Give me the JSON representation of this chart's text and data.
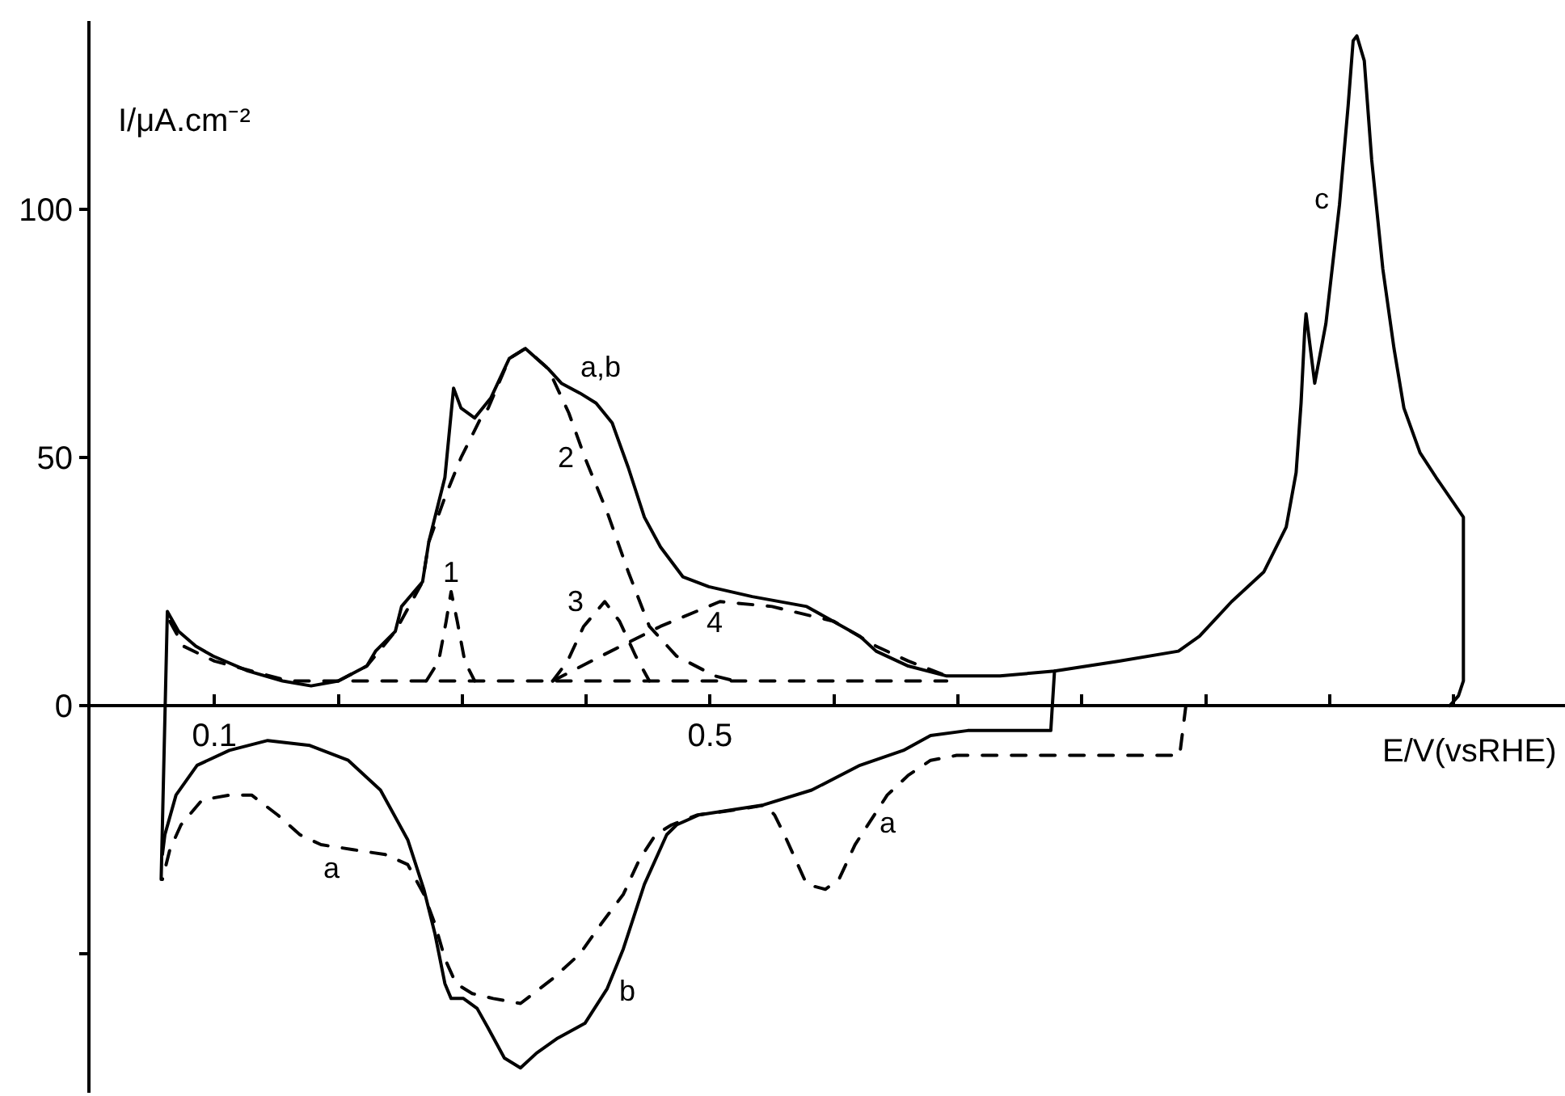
{
  "chart_data": {
    "type": "line",
    "xlabel": "E/V(vsRHE)",
    "ylabel": "I/μA.cm⁻²",
    "xlim": [
      0,
      1.19
    ],
    "ylim": [
      -78,
      138
    ],
    "xticks": [
      0.1,
      {
        "value": 0.2,
        "label": null
      },
      {
        "value": 0.3,
        "label": null
      },
      {
        "value": 0.4,
        "label": null
      },
      0.5,
      {
        "value": 0.6,
        "label": null
      },
      {
        "value": 0.7,
        "label": null
      },
      {
        "value": 0.8,
        "label": null
      },
      {
        "value": 0.9,
        "label": null
      },
      {
        "value": 1.0,
        "label": null
      },
      {
        "value": 1.1,
        "label": null
      }
    ],
    "yticks": [
      {
        "value": -50,
        "label": null
      },
      0,
      50,
      100
    ],
    "grid": false,
    "annotations": [
      {
        "text": "a,b",
        "x": 0.395,
        "y": 63
      },
      {
        "text": "c",
        "x": 1.008,
        "y": 101
      },
      {
        "text": "1",
        "x": 0.291,
        "y": 23
      },
      {
        "text": "2",
        "x": 0.399,
        "y": 50
      },
      {
        "text": "3",
        "x": 0.398,
        "y": 16
      },
      {
        "text": "4",
        "x": 0.508,
        "y": 21
      },
      {
        "text": "a",
        "x": 0.212,
        "y": -29
      },
      {
        "text": "b",
        "x": 0.417,
        "y": -57
      },
      {
        "text": "a",
        "x": 0.63,
        "y": -23
      }
    ],
    "series": [
      {
        "color": "#000000",
        "line_style": "solid",
        "x": [
          0.057,
          0.062,
          0.071,
          0.085,
          0.099,
          0.127,
          0.155,
          0.178,
          0.2,
          0.223,
          0.23,
          0.246,
          0.251,
          0.268,
          0.273,
          0.286,
          0.293,
          0.299,
          0.31,
          0.323,
          0.338,
          0.351,
          0.369,
          0.38,
          0.395,
          0.408,
          0.421,
          0.434,
          0.447,
          0.46,
          0.478,
          0.499,
          0.534,
          0.578,
          0.621,
          0.634,
          0.66,
          0.691,
          0.734,
          0.778,
          0.83,
          0.878,
          0.895,
          0.921,
          0.947,
          0.965,
          0.973,
          0.977,
          0.98,
          0.981,
          0.988,
          0.997,
          1.008,
          1.015,
          1.019,
          1.022,
          1.028,
          1.034,
          1.043,
          1.052,
          1.06,
          1.073,
          1.086,
          1.108,
          1.108,
          1.104,
          1.097
        ],
        "values": [
          -35,
          19,
          15,
          12,
          10,
          7,
          5,
          4,
          5,
          8,
          11,
          15,
          20,
          25,
          33,
          46,
          64,
          60,
          58,
          62,
          70,
          72,
          68,
          65,
          63,
          61,
          57,
          48,
          38,
          32,
          26,
          24,
          22,
          20,
          14,
          11,
          8,
          6,
          6,
          7,
          9,
          11,
          14,
          21,
          27,
          36,
          47,
          61,
          76,
          79,
          65,
          77,
          101,
          121,
          134,
          135,
          130,
          110,
          88,
          72,
          60,
          51,
          46,
          38,
          5,
          2,
          0
        ]
      },
      {
        "color": "#000000",
        "line_style": "solid",
        "x": [
          0.778,
          0.775,
          0.708,
          0.678,
          0.656,
          0.621,
          0.582,
          0.543,
          0.491,
          0.473,
          0.465,
          0.447,
          0.43,
          0.417,
          0.399,
          0.377,
          0.36,
          0.347,
          0.334,
          0.321,
          0.312,
          0.301,
          0.291,
          0.286,
          0.278,
          0.269,
          0.256,
          0.234,
          0.208,
          0.177,
          0.143,
          0.112,
          0.086,
          0.069,
          0.06,
          0.058
        ],
        "values": [
          7,
          -5,
          -5,
          -6,
          -9,
          -12,
          -17,
          -20,
          -22,
          -24,
          -26,
          -36,
          -49,
          -57,
          -64,
          -67,
          -70,
          -73,
          -71,
          -65,
          -61,
          -59,
          -59,
          -56,
          -46,
          -37,
          -27,
          -17,
          -11,
          -8,
          -7,
          -9,
          -12,
          -18,
          -26,
          -30
        ]
      },
      {
        "color": "#000000",
        "line_style": "dashed",
        "x": [
          0.884,
          0.879,
          0.699,
          0.678,
          0.66,
          0.643,
          0.63,
          0.617,
          0.604,
          0.593,
          0.578,
          0.569,
          0.56,
          0.552,
          0.545,
          0.52,
          0.49,
          0.469,
          0.456,
          0.443,
          0.43,
          0.412,
          0.395,
          0.373,
          0.347,
          0.325,
          0.308,
          0.295,
          0.286,
          0.278,
          0.269,
          0.256,
          0.238,
          0.212,
          0.186,
          0.169,
          0.151,
          0.13,
          0.112,
          0.09,
          0.073,
          0.064,
          0.058
        ],
        "values": [
          0,
          -10,
          -10,
          -11,
          -14,
          -18,
          -23,
          -28,
          -35,
          -37,
          -36,
          -31,
          -26,
          -22,
          -20,
          -21,
          -22,
          -24,
          -26,
          -31,
          -38,
          -44,
          -50,
          -55,
          -60,
          -59,
          -58,
          -56,
          -51,
          -44,
          -38,
          -32,
          -30,
          -29,
          -28,
          -26,
          -22,
          -18,
          -18,
          -19,
          -24,
          -29,
          -35
        ]
      },
      {
        "color": "#000000",
        "line_style": "dashed",
        "x": [
          0.064,
          0.075,
          0.1,
          0.13,
          0.16,
          0.691
        ],
        "values": [
          17,
          12,
          9,
          7,
          5,
          5
        ]
      },
      {
        "color": "#000000",
        "line_style": "dashed",
        "x": [
          0.271,
          0.281,
          0.287,
          0.291,
          0.296,
          0.302,
          0.31
        ],
        "values": [
          5,
          9,
          17,
          23,
          17,
          9,
          5
        ]
      },
      {
        "color": "#000000",
        "line_style": "dashed",
        "x": [
          0.2,
          0.223,
          0.246,
          0.268,
          0.273,
          0.286,
          0.299,
          0.315,
          0.321,
          0.338,
          0.351,
          0.369,
          0.373,
          0.386,
          0.399,
          0.417,
          0.434,
          0.451,
          0.473,
          0.504,
          0.52
        ],
        "values": [
          5,
          8,
          15,
          25,
          33,
          42,
          50,
          58,
          60,
          70,
          72,
          68,
          66,
          59,
          50,
          39,
          27,
          16,
          10,
          6,
          5
        ]
      },
      {
        "color": "#000000",
        "line_style": "dashed",
        "x": [
          0.373,
          0.385,
          0.398,
          0.415,
          0.427,
          0.44,
          0.451
        ],
        "values": [
          5,
          9,
          16,
          21,
          17,
          10,
          5
        ]
      },
      {
        "color": "#000000",
        "line_style": "dashed",
        "x": [
          0.373,
          0.412,
          0.46,
          0.508,
          0.55,
          0.6,
          0.634,
          0.66,
          0.691
        ],
        "values": [
          5,
          10,
          16,
          21,
          20,
          17,
          12,
          9,
          6
        ]
      }
    ]
  }
}
